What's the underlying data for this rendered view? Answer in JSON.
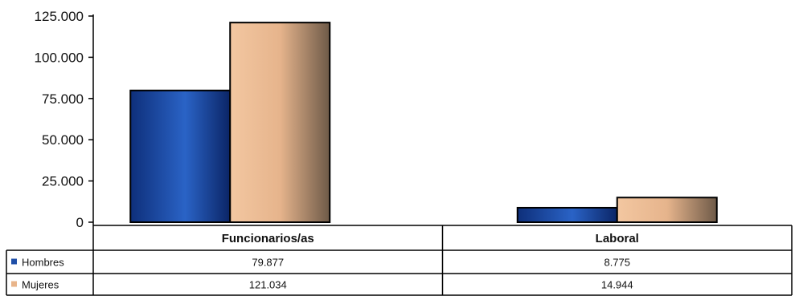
{
  "chart_data": {
    "type": "bar",
    "categories": [
      "Funcionarios/as",
      "Laboral"
    ],
    "series": [
      {
        "name": "Hombres",
        "values": [
          79877,
          8775
        ],
        "display": [
          "79.877",
          "8.775"
        ],
        "color": "#1f4fa8"
      },
      {
        "name": "Mujeres",
        "values": [
          121034,
          14944
        ],
        "display": [
          "121.034",
          "14.944"
        ],
        "color": "#e8b48a"
      }
    ],
    "yticks": [
      "0",
      "25.000",
      "50.000",
      "75.000",
      "100.000",
      "125.000"
    ],
    "ylim": [
      0,
      125000
    ],
    "legend": "data-table-left",
    "grid": false
  }
}
